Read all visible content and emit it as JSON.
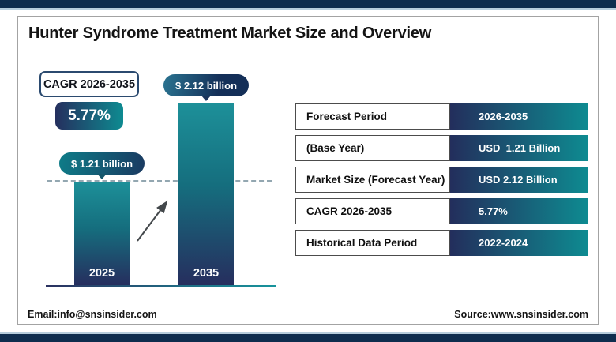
{
  "header": {
    "title": "Hunter Syndrome Treatment Market Size and Overview"
  },
  "cagr": {
    "label": "CAGR 2026-2035",
    "value": "5.77%"
  },
  "chart_data": {
    "type": "bar",
    "categories": [
      "2025",
      "2035"
    ],
    "values": [
      1.21,
      2.12
    ],
    "unit": "USD Billion",
    "bar_labels": [
      "$ 1.21 billion",
      "$ 2.12 billion"
    ],
    "title": "",
    "xlabel": "",
    "ylabel": "",
    "ylim": [
      0,
      2.4
    ],
    "legend": false,
    "grid": false,
    "annotations": {
      "reference_dashed_line_y": 1.21,
      "growth_arrow": true
    }
  },
  "table": {
    "rows": [
      {
        "label": "Forecast Period",
        "value": "2026-2035"
      },
      {
        "label": "(Base Year)",
        "value": "USD  1.21 Billion"
      },
      {
        "label": "Market Size (Forecast Year)",
        "value": "USD 2.12 Billion"
      },
      {
        "label": "CAGR 2026-2035",
        "value": "5.77%"
      },
      {
        "label": "Historical Data Period",
        "value": "2022-2024"
      }
    ]
  },
  "footer": {
    "email": "Email:info@snsinsider.com",
    "source": "Source:www.snsinsider.com"
  },
  "colors": {
    "navy": "#0f2d4e",
    "stripe": "#b7cddc",
    "teal": "#0e8b91"
  }
}
